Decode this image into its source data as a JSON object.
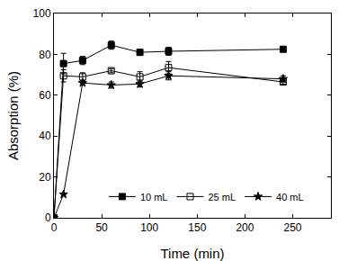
{
  "chart_data": {
    "type": "line",
    "x_label": "Time (min)",
    "y_label": "Absorption (%)",
    "x": [
      0,
      10,
      30,
      60,
      90,
      120,
      240
    ],
    "series": [
      {
        "name": "10 mL",
        "color": "#000000",
        "marker": "square",
        "line_style": "solid",
        "values": [
          0,
          75.5,
          77,
          84.5,
          81,
          81.5,
          82.5
        ],
        "error": [
          0,
          5,
          2,
          2,
          1.5,
          2,
          1
        ]
      },
      {
        "name": "25 mL",
        "color": "#000000",
        "marker": "square-open",
        "line_style": "solid",
        "values": [
          0,
          69.5,
          69,
          72,
          69,
          73.5,
          66.5
        ],
        "error": [
          0,
          3,
          2,
          1,
          2.5,
          3,
          1
        ]
      },
      {
        "name": "40 mL",
        "color": "#000000",
        "marker": "star",
        "line_style": "solid",
        "values": [
          0,
          11.5,
          66,
          65,
          65.5,
          69.5,
          68
        ],
        "error": [
          0,
          0.5,
          1,
          1.5,
          1.5,
          2,
          1.5
        ]
      }
    ],
    "xlim": [
      0,
      290
    ],
    "xticks": [
      0,
      50,
      100,
      150,
      200,
      250
    ],
    "ylim": [
      0,
      100
    ],
    "yticks": [
      0,
      20,
      40,
      60,
      80,
      100
    ],
    "grid": false,
    "legend": "bottom"
  }
}
